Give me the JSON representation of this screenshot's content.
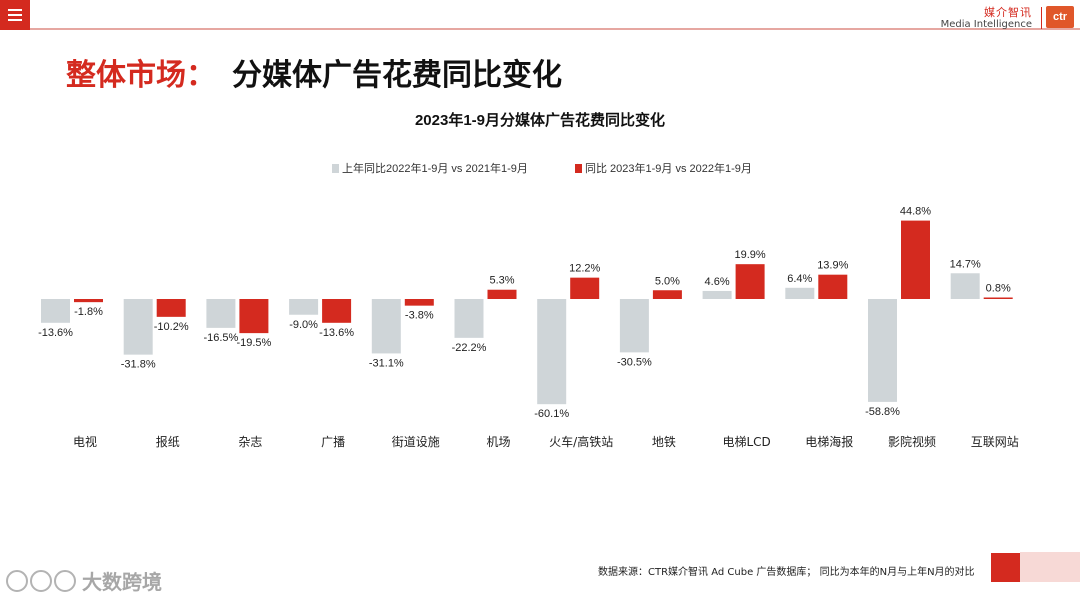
{
  "header": {
    "menu_icon": "hamburger-menu-icon",
    "brand_cn": "媒介智讯",
    "brand_en": "Media Intelligence",
    "brand_logo": "ctr",
    "accent_color": "#d42a1f"
  },
  "page": {
    "title_prefix": "整体市场：",
    "title_main": "分媒体广告花费同比变化"
  },
  "chart_data": {
    "type": "bar",
    "title": "2023年1-9月分媒体广告花费同比变化",
    "categories": [
      "电视",
      "报纸",
      "杂志",
      "广播",
      "街道设施",
      "机场",
      "火车/高铁站",
      "地铁",
      "电梯LCD",
      "电梯海报",
      "影院视频",
      "互联网站"
    ],
    "series": [
      {
        "name": "上年同比2022年1-9月  vs  2021年1-9月",
        "color": "#cfd5d8",
        "values": [
          -13.6,
          -31.8,
          -16.5,
          -9.0,
          -31.1,
          -22.2,
          -60.1,
          -30.5,
          4.6,
          6.4,
          -58.8,
          14.7
        ],
        "labels": [
          "-13.6%",
          "-31.8%",
          "-16.5%",
          "-9.0%",
          "-31.1%",
          "-22.2%",
          "-60.1%",
          "-30.5%",
          "4.6%",
          "6.4%",
          "-58.8%",
          "14.7%"
        ]
      },
      {
        "name": "同比 2023年1-9月  vs  2022年1-9月",
        "color": "#d42a1f",
        "values": [
          -1.8,
          -10.2,
          -19.5,
          -13.6,
          -3.8,
          5.3,
          12.2,
          5.0,
          19.9,
          13.9,
          44.8,
          0.8
        ],
        "labels": [
          "-1.8%",
          "-10.2%",
          "-19.5%",
          "-13.6%",
          "-3.8%",
          "5.3%",
          "12.2%",
          "5.0%",
          "19.9%",
          "13.9%",
          "44.8%",
          "0.8%"
        ]
      }
    ],
    "xlabel": "",
    "ylabel": "",
    "unit": "%",
    "legend_position": "top",
    "grid": false
  },
  "footer": {
    "source": "数据来源：CTR媒介智讯 Ad Cube 广告数据库；  同比为本年的N月与上年N月的对比",
    "watermark": "大数跨境"
  }
}
